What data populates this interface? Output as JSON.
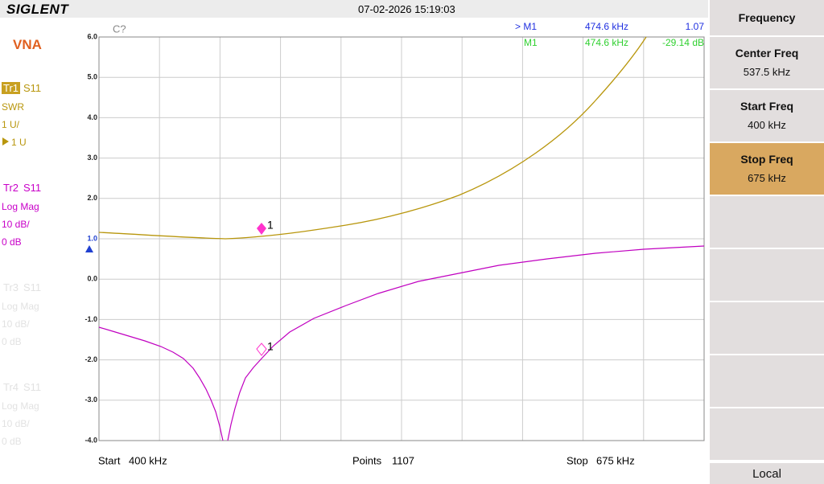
{
  "header": {
    "brand": "SIGLENT",
    "datetime": "07-02-2026 15:19:03"
  },
  "left_panel": {
    "mode": "VNA",
    "traces": [
      {
        "name": "Tr1",
        "param": "S11",
        "format": "SWR",
        "scale": "1 U/",
        "ref": "1 U"
      },
      {
        "name": "Tr2",
        "param": "S11",
        "format": "Log Mag",
        "scale": "10 dB/",
        "ref": "0 dB"
      },
      {
        "name": "Tr3",
        "param": "S11",
        "format": "Log Mag",
        "scale": "10 dB/",
        "ref": "0 dB"
      },
      {
        "name": "Tr4",
        "param": "S11",
        "format": "Log Mag",
        "scale": "10 dB/",
        "ref": "0 dB"
      }
    ]
  },
  "plot": {
    "status": "C?",
    "yticks": [
      "6.0",
      "5.0",
      "4.0",
      "3.0",
      "2.0",
      "1.0",
      "0.0",
      "-1.0",
      "-2.0",
      "-3.0",
      "-4.0"
    ],
    "markers": [
      {
        "label": "> M1",
        "freq": "474.6 kHz",
        "value": "1.07"
      },
      {
        "label": "M1",
        "freq": "474.6 kHz",
        "value": "-29.14 dB"
      }
    ],
    "marker_tags": [
      "1",
      "1"
    ],
    "footer": {
      "start_label": "Start",
      "start": "400 kHz",
      "points_label": "Points",
      "points": "1107",
      "stop_label": "Stop",
      "stop": "675 kHz"
    }
  },
  "menu": {
    "title": "Frequency",
    "items": [
      {
        "label": "Center Freq",
        "value": "537.5 kHz"
      },
      {
        "label": "Start Freq",
        "value": "400 kHz"
      },
      {
        "label": "Stop Freq",
        "value": "675 kHz"
      }
    ],
    "bottom": "Local"
  }
}
